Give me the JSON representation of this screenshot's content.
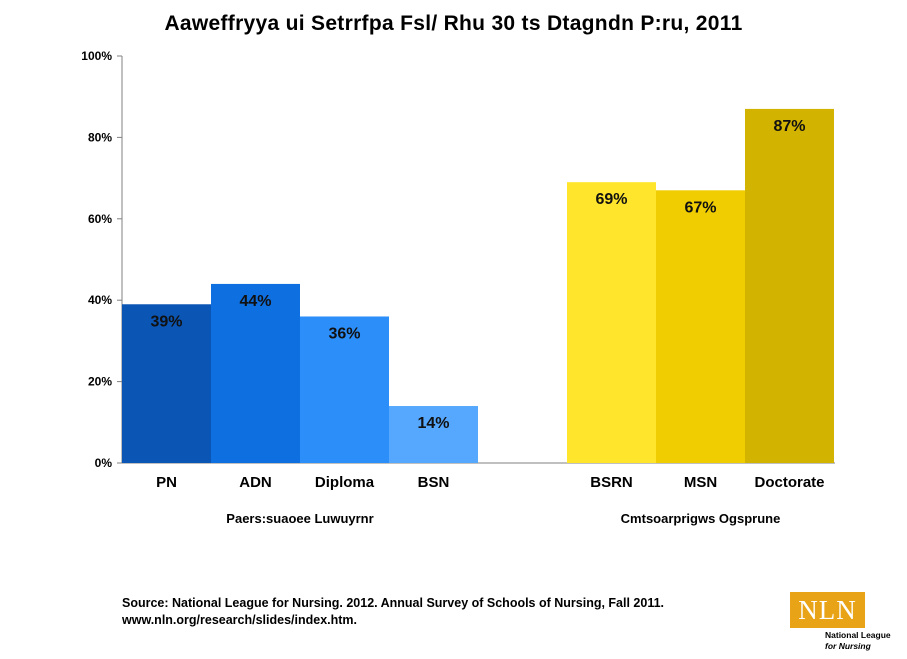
{
  "title": "Aaweffryya ui Setrrfpa Fsl/ Rhu 30 ts Dtagndn P:ru, 2011",
  "chart_data": {
    "type": "bar",
    "title": "Aaweffryya ui Setrrfpa Fsl/ Rhu 30 ts Dtagndn P:ru, 2011",
    "ylim": [
      0,
      100
    ],
    "yticks": [
      "0%",
      "20%",
      "40%",
      "60%",
      "80%",
      "100%"
    ],
    "ytick_values": [
      0,
      20,
      40,
      60,
      80,
      100
    ],
    "grid": false,
    "groups": [
      {
        "name": "Paers:suaoee Luwuyrnr",
        "categories": [
          "PN",
          "ADN",
          "Diploma",
          "BSN"
        ],
        "values": [
          39,
          44,
          36,
          14
        ],
        "labels": [
          "39%",
          "44%",
          "36%",
          "14%"
        ],
        "colors": [
          "#0b55b4",
          "#0e6fe0",
          "#2c8ef8",
          "#56a8ff"
        ]
      },
      {
        "name": "Cmtsoarprigws Ogsprune",
        "categories": [
          "BSRN",
          "MSN",
          "Doctorate"
        ],
        "values": [
          69,
          67,
          87
        ],
        "labels": [
          "69%",
          "67%",
          "87%"
        ],
        "colors": [
          "#ffe52c",
          "#f0cd00",
          "#d2b400"
        ]
      }
    ]
  },
  "source": {
    "line1": "Source: National League for Nursing. 2012. Annual Survey of Schools of Nursing, Fall 2011.",
    "line2": "www.nln.org/research/slides/index.htm."
  },
  "logo": {
    "mark": "NLN",
    "line1": "National League",
    "line2": "for Nursing"
  }
}
